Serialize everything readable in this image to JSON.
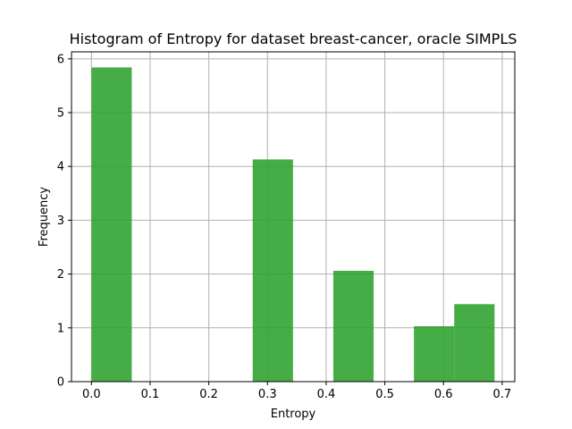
{
  "chart_data": {
    "type": "bar",
    "title": "Histogram of Entropy for dataset breast-cancer, oracle SIMPLS",
    "xlabel": "Entropy",
    "ylabel": "Frequency",
    "xlim": [
      -0.034,
      0.7215
    ],
    "ylim": [
      0,
      6.13
    ],
    "grid": true,
    "x_ticks": [
      0.0,
      0.1,
      0.2,
      0.3,
      0.4,
      0.5,
      0.6,
      0.7
    ],
    "x_tick_labels": [
      "0.0",
      "0.1",
      "0.2",
      "0.3",
      "0.4",
      "0.5",
      "0.6",
      "0.7"
    ],
    "y_ticks": [
      0,
      1,
      2,
      3,
      4,
      5,
      6
    ],
    "y_tick_labels": [
      "0",
      "1",
      "2",
      "3",
      "4",
      "5",
      "6"
    ],
    "bar_color": "#2ca02c",
    "bins": [
      {
        "start": 0.0,
        "end": 0.0687,
        "value": 5.84
      },
      {
        "start": 0.0687,
        "end": 0.1374,
        "value": 0
      },
      {
        "start": 0.1374,
        "end": 0.2061,
        "value": 0
      },
      {
        "start": 0.2061,
        "end": 0.2748,
        "value": 0
      },
      {
        "start": 0.2748,
        "end": 0.3435,
        "value": 4.13
      },
      {
        "start": 0.3435,
        "end": 0.4122,
        "value": 0
      },
      {
        "start": 0.4122,
        "end": 0.4809,
        "value": 2.06
      },
      {
        "start": 0.4809,
        "end": 0.5496,
        "value": 0
      },
      {
        "start": 0.5496,
        "end": 0.6183,
        "value": 1.03
      },
      {
        "start": 0.6183,
        "end": 0.687,
        "value": 1.44
      }
    ]
  }
}
